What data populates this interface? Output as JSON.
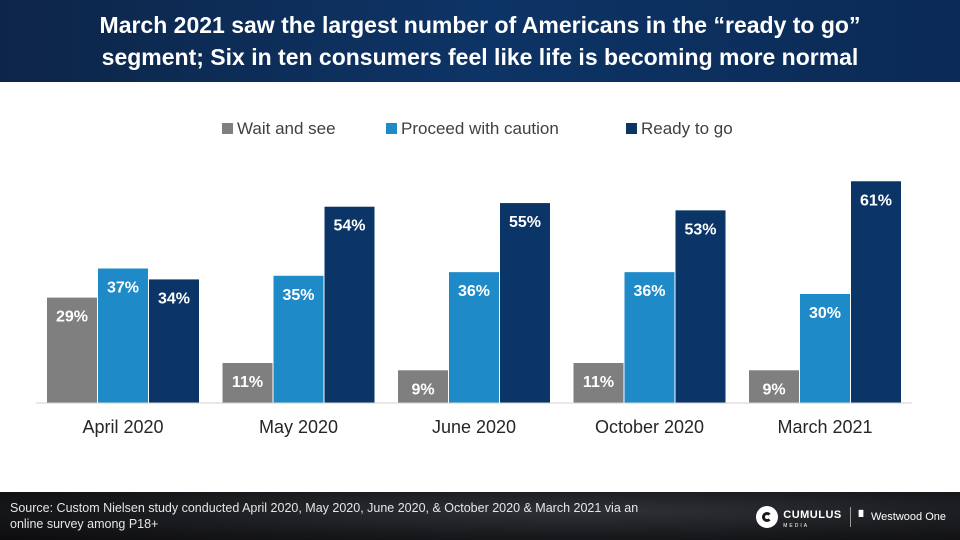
{
  "header": {
    "title_line1": "March 2021 saw the largest number of Americans in the “ready to go”",
    "title_line2": "segment; Six in ten consumers feel like life is becoming more normal"
  },
  "chart_data": {
    "type": "bar",
    "categories": [
      "April 2020",
      "May 2020",
      "June 2020",
      "October 2020",
      "March 2021"
    ],
    "series": [
      {
        "name": "Wait and see",
        "color": "#7f7f7f",
        "values": [
          29,
          11,
          9,
          11,
          9
        ],
        "labels": [
          "29%",
          "11%",
          "9%",
          "11%",
          "9%"
        ]
      },
      {
        "name": "Proceed with caution",
        "color": "#1f8ac8",
        "values": [
          37,
          35,
          36,
          36,
          30
        ],
        "labels": [
          "37%",
          "35%",
          "36%",
          "36%",
          "30%"
        ]
      },
      {
        "name": "Ready to go",
        "color": "#0b3566",
        "values": [
          34,
          54,
          55,
          53,
          61
        ],
        "labels": [
          "34%",
          "54%",
          "55%",
          "53%",
          "61%"
        ]
      }
    ],
    "ylim": [
      0,
      63
    ],
    "grid": false,
    "legend": "top-center"
  },
  "footer": {
    "source": "Source: Custom Nielsen study conducted April 2020, May 2020, June 2020, & October 2020 & March 2021 via an online survey among P18+",
    "logo_cumulus": "CUMULUS",
    "logo_cumulus_sub": "MEDIA",
    "logo_westwood": "Westwood One",
    "logo_westwood_icon": "ww-icon"
  }
}
